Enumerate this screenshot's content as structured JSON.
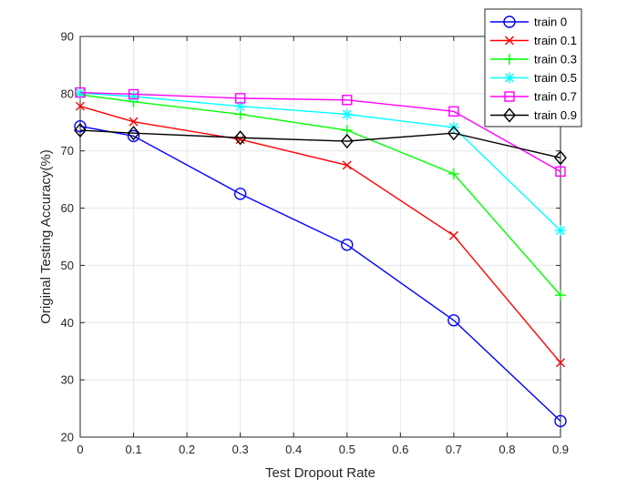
{
  "chart_data": {
    "type": "line",
    "xlabel": "Test Dropout Rate",
    "ylabel": "Original Testing Accuracy(%)",
    "xlim": [
      0,
      0.9
    ],
    "ylim": [
      20,
      90
    ],
    "xticks": [
      0,
      0.1,
      0.2,
      0.3,
      0.4,
      0.5,
      0.6,
      0.7,
      0.8,
      0.9
    ],
    "xtick_labels": [
      "0",
      "0.1",
      "0.2",
      "0.3",
      "0.4",
      "0.5",
      "0.6",
      "0.7",
      "0.8",
      "0.9"
    ],
    "yticks": [
      20,
      30,
      40,
      50,
      60,
      70,
      80,
      90
    ],
    "ytick_labels": [
      "20",
      "30",
      "40",
      "50",
      "60",
      "70",
      "80",
      "90"
    ],
    "grid": true,
    "legend_position": "top-right",
    "x": [
      0,
      0.1,
      0.3,
      0.5,
      0.7,
      0.9
    ],
    "series": [
      {
        "name": "train 0",
        "color": "#0000ff",
        "marker": "circle",
        "values": [
          74.3,
          72.6,
          62.5,
          53.6,
          40.4,
          22.8
        ]
      },
      {
        "name": "train 0.1",
        "color": "#ff0000",
        "marker": "x",
        "values": [
          77.8,
          75.1,
          72.0,
          67.5,
          55.2,
          33.0
        ]
      },
      {
        "name": "train 0.3",
        "color": "#00ff00",
        "marker": "plus",
        "values": [
          79.8,
          78.6,
          76.4,
          73.6,
          66.0,
          44.8
        ]
      },
      {
        "name": "train 0.5",
        "color": "#00ffff",
        "marker": "star",
        "values": [
          80.1,
          79.5,
          77.8,
          76.4,
          74.1,
          56.1
        ]
      },
      {
        "name": "train 0.7",
        "color": "#ff00ff",
        "marker": "square",
        "values": [
          80.2,
          79.9,
          79.2,
          78.9,
          76.9,
          66.4
        ]
      },
      {
        "name": "train 0.9",
        "color": "#000000",
        "marker": "diamond",
        "values": [
          73.6,
          73.1,
          72.3,
          71.7,
          73.1,
          68.8
        ]
      }
    ]
  }
}
